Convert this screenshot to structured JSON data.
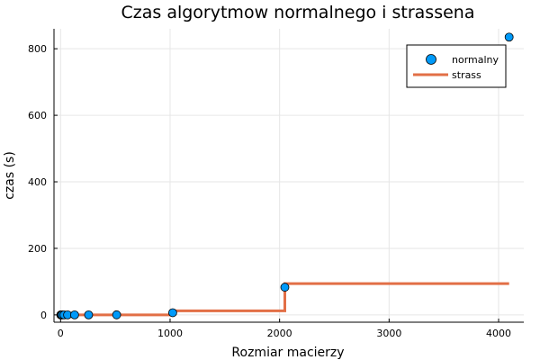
{
  "chart_data": {
    "type": "scatter",
    "title": "Czas algorytmow normalnego i  strassena",
    "xlabel": "Rozmiar macierzy",
    "ylabel": "czas (s)",
    "xlim": [
      -60,
      4230
    ],
    "ylim": [
      -22,
      860
    ],
    "x_ticks": [
      0,
      1000,
      2000,
      3000,
      4000
    ],
    "y_ticks": [
      0,
      200,
      400,
      600,
      800
    ],
    "grid": true,
    "legend_position": "top-right",
    "series": [
      {
        "name": "normalny",
        "kind": "scatter",
        "color": "#009af9",
        "x": [
          2,
          4,
          8,
          16,
          32,
          64,
          128,
          256,
          512,
          1024,
          2048,
          4096
        ],
        "y": [
          0,
          0,
          0,
          0,
          0,
          0,
          0,
          0,
          0.2,
          6.5,
          83,
          835
        ]
      },
      {
        "name": "strass",
        "kind": "step",
        "color": "#e26f46",
        "x": [
          2,
          4,
          8,
          16,
          32,
          64,
          128,
          256,
          512,
          1024,
          2048,
          4096
        ],
        "y": [
          0,
          0,
          0,
          0,
          0,
          0,
          0,
          0,
          0.1,
          12,
          94,
          94
        ]
      }
    ]
  }
}
